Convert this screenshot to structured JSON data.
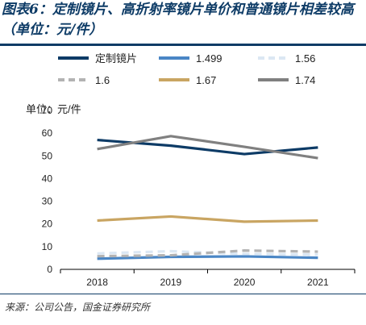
{
  "figure": {
    "title": "图表6：定制镜片、高折射率镜片单价和普通镜片相差较高（单位：元/件）",
    "source": "来源：公司公告，国金证券研究所"
  },
  "chart_data": {
    "type": "line",
    "title": "",
    "unit_label": "单位：元/件",
    "x": [
      "2018",
      "2019",
      "2020",
      "2021"
    ],
    "ylim": [
      0,
      70
    ],
    "yticks": [
      0,
      10,
      20,
      30,
      40,
      50,
      60,
      70
    ],
    "grid": false,
    "legend_placement": "top",
    "series": [
      {
        "name": "定制镜片",
        "values": [
          57.0,
          54.5,
          50.8,
          53.7
        ],
        "color": "#0d3b66",
        "dash": "solid"
      },
      {
        "name": "1.499",
        "values": [
          4.7,
          5.5,
          5.7,
          5.1
        ],
        "color": "#4a86c5",
        "dash": "solid"
      },
      {
        "name": "1.56",
        "values": [
          7.0,
          8.0,
          6.8,
          6.5
        ],
        "color": "#dbe7f3",
        "dash": "dashed"
      },
      {
        "name": "1.6",
        "values": [
          5.8,
          6.2,
          8.3,
          7.8
        ],
        "color": "#b3b3b3",
        "dash": "dashed"
      },
      {
        "name": "1.67",
        "values": [
          21.5,
          23.3,
          21.0,
          21.5
        ],
        "color": "#c9a562",
        "dash": "solid"
      },
      {
        "name": "1.74",
        "values": [
          53.0,
          58.7,
          54.0,
          49.0
        ],
        "color": "#808080",
        "dash": "solid"
      }
    ]
  }
}
